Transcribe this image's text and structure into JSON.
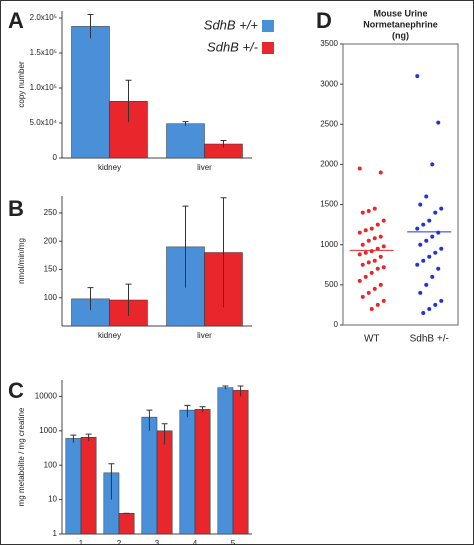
{
  "chart_data": [
    {
      "type": "bar",
      "label": "A",
      "ylabel": "copy number",
      "categories": [
        "kidney",
        "liver"
      ],
      "series": [
        {
          "name": "SdhB +/+",
          "color": "#4a90d9",
          "values": [
            188000,
            49000
          ],
          "errors": [
            17000,
            3000
          ]
        },
        {
          "name": "SdhB +/-",
          "color": "#e8262b",
          "values": [
            81000,
            20000
          ],
          "errors": [
            30000,
            5000
          ]
        }
      ],
      "legend": "upper right",
      "ylim": [
        0,
        210000
      ],
      "yticks": [
        0,
        {
          "value": 50000,
          "label": "5.0x10⁴"
        },
        {
          "value": 100000,
          "label": "1.0x10⁵"
        },
        {
          "value": 150000,
          "label": "1.5x10⁵"
        },
        {
          "value": 200000,
          "label": "2.0x10⁵"
        }
      ]
    },
    {
      "type": "bar",
      "label": "B",
      "ylabel": "nmol/min/mg",
      "categories": [
        "kidney",
        "liver"
      ],
      "series": [
        {
          "color": "#4a90d9",
          "values": [
            98,
            190
          ],
          "errors": [
            20,
            72
          ]
        },
        {
          "color": "#e8262b",
          "values": [
            96,
            180
          ],
          "errors": [
            28,
            97
          ]
        }
      ],
      "ylim": [
        50,
        280
      ],
      "yticks": [
        100,
        150,
        200,
        250
      ]
    },
    {
      "type": "bar",
      "label": "C",
      "ylabel": "mg metabolite / mg creatine",
      "categories": [
        "1",
        "2",
        "3",
        "4",
        "5"
      ],
      "log": true,
      "series": [
        {
          "color": "#4a90d9",
          "values": [
            600,
            60,
            2500,
            4000,
            18000
          ],
          "errors": [
            150,
            50,
            1500,
            1500,
            2000
          ]
        },
        {
          "color": "#e8262b",
          "values": [
            650,
            4,
            1000,
            4200,
            15000
          ],
          "errors": [
            150,
            0,
            600,
            800,
            5000
          ]
        }
      ],
      "ylim": [
        1,
        30000
      ],
      "yticks": [
        1,
        10,
        100,
        1000,
        10000
      ]
    },
    {
      "type": "strip",
      "label": "D",
      "title": [
        "Mouse Urine",
        "Normetanephrine",
        "(ng)"
      ],
      "categories": [
        "WT",
        "SdhB +/-"
      ],
      "series": [
        {
          "color": "#e8262b",
          "mean": 930,
          "values": [
            1950,
            1900,
            1450,
            1420,
            1400,
            1300,
            1250,
            1200,
            1180,
            1150,
            1100,
            1080,
            1050,
            1000,
            980,
            950,
            920,
            900,
            880,
            850,
            800,
            780,
            750,
            720,
            700,
            650,
            600,
            550,
            500,
            450,
            400,
            350,
            300,
            250,
            200
          ]
        },
        {
          "color": "#2233dd",
          "mean": 1160,
          "values": [
            3100,
            2520,
            2000,
            1600,
            1500,
            1450,
            1400,
            1300,
            1250,
            1200,
            1150,
            1100,
            1050,
            1000,
            950,
            900,
            850,
            800,
            750,
            700,
            600,
            500,
            400,
            300,
            250,
            200,
            150
          ]
        }
      ],
      "ylim": [
        0,
        3500
      ],
      "yticks": [
        0,
        500,
        1000,
        1500,
        2000,
        2500,
        3000,
        3500
      ]
    }
  ]
}
